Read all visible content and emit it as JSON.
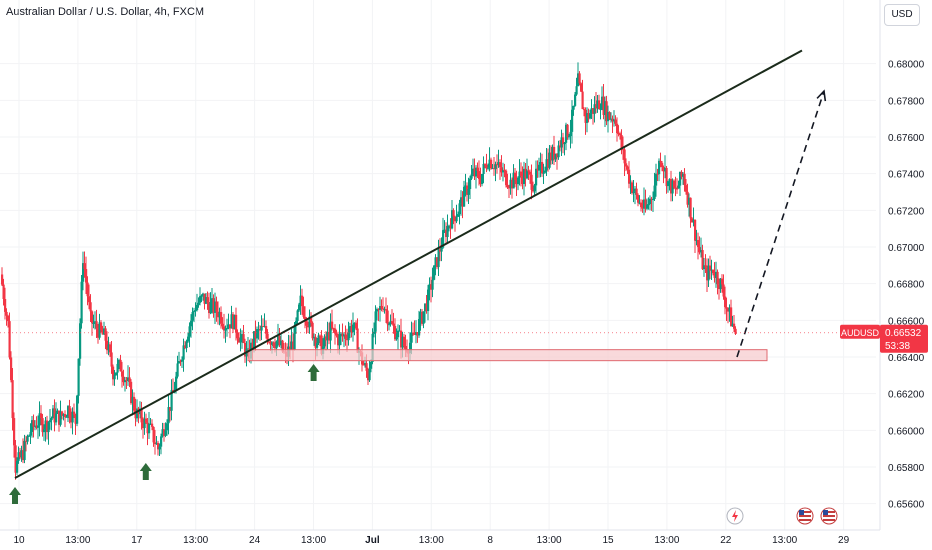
{
  "header": {
    "title": "Australian Dollar / U.S. Dollar, 4h, FXCM",
    "currency_button": "USD"
  },
  "colors": {
    "up": "#089981",
    "down": "#f23645",
    "trend": "#1b2b1b",
    "arrow": "#2e6b3a",
    "zone_fill": "#f6c9cc",
    "zone_stroke": "#e06a70",
    "label_bg": "#f23645"
  },
  "price_label": {
    "symbol": "AUDUSD",
    "price": "0.66532",
    "countdown": "53:38",
    "value": 0.66532
  },
  "icons": {
    "lightning": "lightning-icon",
    "flag": "us-flag-icon"
  },
  "chart_data": {
    "type": "candlestick",
    "title": "Australian Dollar / U.S. Dollar, 4h, FXCM",
    "ylim": [
      0.6556,
      0.6808
    ],
    "yticks": [
      "0.68000",
      "0.67800",
      "0.67600",
      "0.67400",
      "0.67200",
      "0.67000",
      "0.66800",
      "0.66600",
      "0.66400",
      "0.66200",
      "0.66000",
      "0.65800",
      "0.65600"
    ],
    "xticks": [
      "10",
      "13:00",
      "17",
      "13:00",
      "24",
      "13:00",
      "Jul",
      "13:00",
      "8",
      "13:00",
      "15",
      "13:00",
      "22",
      "13:00",
      "29"
    ],
    "close_path": [
      0.6685,
      0.6658,
      0.658,
      0.6588,
      0.66,
      0.6605,
      0.6603,
      0.6608,
      0.6607,
      0.6612,
      0.6605,
      0.6695,
      0.666,
      0.6655,
      0.665,
      0.6632,
      0.6635,
      0.6625,
      0.661,
      0.6605,
      0.66,
      0.659,
      0.6605,
      0.662,
      0.664,
      0.6655,
      0.6668,
      0.6672,
      0.6668,
      0.6665,
      0.6658,
      0.666,
      0.665,
      0.664,
      0.6652,
      0.6655,
      0.665,
      0.6648,
      0.664,
      0.6648,
      0.667,
      0.666,
      0.665,
      0.6645,
      0.6655,
      0.665,
      0.6652,
      0.6658,
      0.664,
      0.663,
      0.666,
      0.667,
      0.6658,
      0.6652,
      0.6645,
      0.665,
      0.666,
      0.6672,
      0.669,
      0.6705,
      0.6715,
      0.672,
      0.673,
      0.674,
      0.6738,
      0.6748,
      0.6745,
      0.674,
      0.6735,
      0.6738,
      0.674,
      0.6735,
      0.6742,
      0.6748,
      0.6752,
      0.676,
      0.6765,
      0.679,
      0.677,
      0.6775,
      0.678,
      0.6772,
      0.677,
      0.675,
      0.6735,
      0.6725,
      0.672,
      0.673,
      0.675,
      0.6735,
      0.673,
      0.674,
      0.672,
      0.67,
      0.6685,
      0.6688,
      0.668,
      0.6665,
      0.6653
    ],
    "trendline": {
      "start": {
        "x": "10",
        "y": 0.6574
      },
      "end": {
        "x": "24",
        "y": 0.6645
      }
    },
    "support_zone": {
      "y_low": 0.6638,
      "y_high": 0.6644
    },
    "projection": [
      0.664,
      0.6785
    ],
    "arrows": [
      "10",
      "17",
      "24"
    ],
    "current_price": 0.66532
  }
}
